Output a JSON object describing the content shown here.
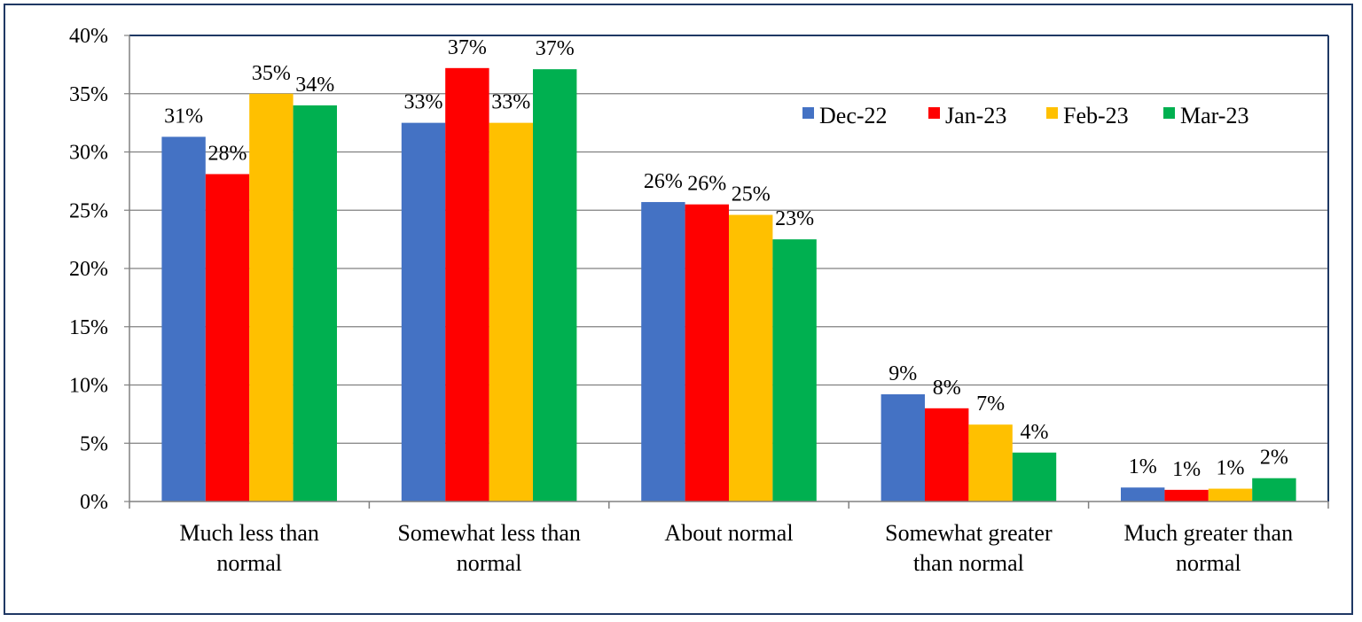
{
  "chart_data": {
    "type": "bar",
    "title": "",
    "xlabel": "",
    "ylabel": "",
    "ylim": [
      0,
      40
    ],
    "y_ticks": [
      "0%",
      "5%",
      "10%",
      "15%",
      "20%",
      "25%",
      "30%",
      "35%",
      "40%"
    ],
    "grid": true,
    "legend_position": "top-right",
    "categories": [
      [
        "Much less than",
        "normal"
      ],
      [
        "Somewhat less than",
        "normal"
      ],
      [
        "About normal"
      ],
      [
        "Somewhat greater",
        "than normal"
      ],
      [
        "Much greater than",
        "normal"
      ]
    ],
    "series": [
      {
        "name": "Dec-22",
        "color": "#4472c4",
        "values": [
          31.3,
          32.5,
          25.7,
          9.2,
          1.2
        ],
        "labels": [
          "31%",
          "33%",
          "26%",
          "9%",
          "1%"
        ]
      },
      {
        "name": "Jan-23",
        "color": "#ff0000",
        "values": [
          28.1,
          37.2,
          25.5,
          8.0,
          1.0
        ],
        "labels": [
          "28%",
          "37%",
          "26%",
          "8%",
          "1%"
        ]
      },
      {
        "name": "Feb-23",
        "color": "#ffc000",
        "values": [
          35.0,
          32.5,
          24.6,
          6.6,
          1.1
        ],
        "labels": [
          "35%",
          "33%",
          "25%",
          "7%",
          "1%"
        ]
      },
      {
        "name": "Mar-23",
        "color": "#00b050",
        "values": [
          34.0,
          37.1,
          22.5,
          4.2,
          2.0
        ],
        "labels": [
          "34%",
          "37%",
          "23%",
          "4%",
          "2%"
        ]
      }
    ]
  }
}
